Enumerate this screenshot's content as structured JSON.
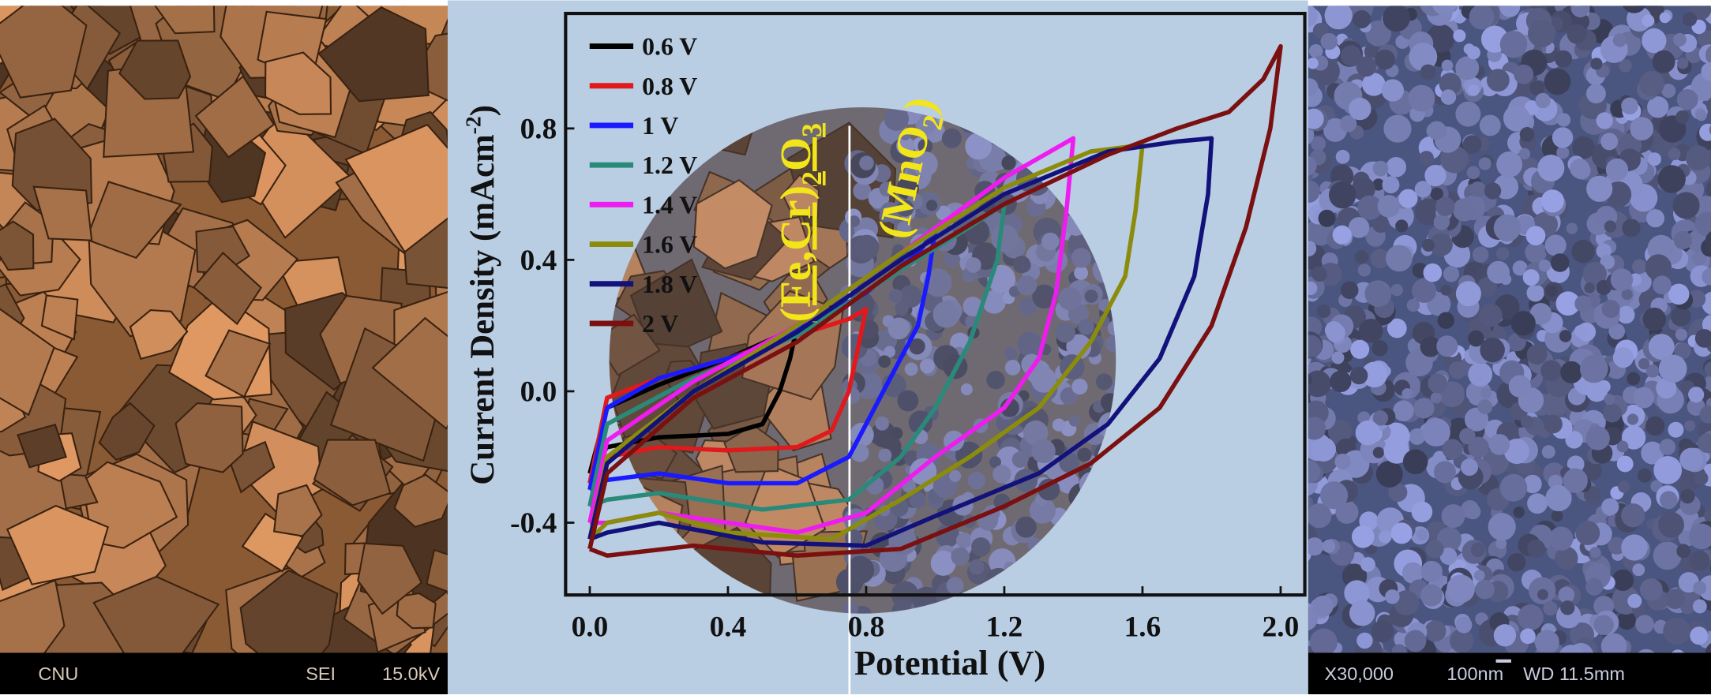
{
  "chart_data": {
    "type": "line",
    "x_label": "Potential (V)",
    "y_label": [
      "Current Density (mAcm",
      "-2",
      ")"
    ],
    "annotations": [
      [
        "(Fe,Cr)",
        "2",
        "O",
        "3"
      ],
      [
        "(MnO",
        "2",
        ")"
      ]
    ],
    "legend": "upper left",
    "xlim": [
      -0.07,
      2.07
    ],
    "ylim": [
      -0.62,
      1.15
    ],
    "xticks": [
      {
        "value": 0,
        "label": "0.0"
      },
      0.4,
      0.8,
      1.2,
      1.6,
      {
        "value": 2,
        "label": "2.0"
      }
    ],
    "yticks": [
      -0.4,
      {
        "value": 0,
        "label": "0.0"
      },
      0.4,
      0.8
    ],
    "series": [
      {
        "name": "0.6 V",
        "color": "#000000",
        "x": [
          0,
          0.05,
          0.2,
          0.4,
          0.55,
          0.6,
          0.58,
          0.55,
          0.5,
          0.4,
          0.2,
          0.05,
          0
        ],
        "values": [
          -0.25,
          -0.05,
          0.02,
          0.1,
          0.17,
          0.2,
          0.1,
          0.0,
          -0.1,
          -0.13,
          -0.14,
          -0.17,
          -0.25
        ]
      },
      {
        "name": "0.8 V",
        "color": "#e0191d",
        "x": [
          0,
          0.05,
          0.2,
          0.4,
          0.6,
          0.75,
          0.8,
          0.78,
          0.75,
          0.7,
          0.6,
          0.4,
          0.2,
          0.05,
          0
        ],
        "values": [
          -0.28,
          -0.02,
          0.04,
          0.1,
          0.17,
          0.22,
          0.25,
          0.15,
          0.0,
          -0.12,
          -0.17,
          -0.18,
          -0.17,
          -0.2,
          -0.28
        ]
      },
      {
        "name": "1 V",
        "color": "#1a1aff",
        "x": [
          0,
          0.05,
          0.2,
          0.5,
          0.8,
          0.95,
          1.0,
          0.98,
          0.95,
          0.85,
          0.75,
          0.6,
          0.4,
          0.2,
          0.05,
          0
        ],
        "values": [
          -0.3,
          -0.05,
          0.04,
          0.13,
          0.3,
          0.42,
          0.49,
          0.35,
          0.2,
          0.0,
          -0.2,
          -0.28,
          -0.28,
          -0.25,
          -0.27,
          -0.3
        ]
      },
      {
        "name": "1.2 V",
        "color": "#2a8a7a",
        "x": [
          0,
          0.05,
          0.3,
          0.6,
          0.9,
          1.1,
          1.2,
          1.18,
          1.1,
          1.0,
          0.9,
          0.75,
          0.5,
          0.2,
          0.05,
          0
        ],
        "values": [
          -0.35,
          -0.1,
          0.04,
          0.17,
          0.37,
          0.5,
          0.57,
          0.4,
          0.15,
          -0.05,
          -0.2,
          -0.33,
          -0.36,
          -0.31,
          -0.33,
          -0.35
        ]
      },
      {
        "name": "1.4 V",
        "color": "#ee1cee",
        "x": [
          0,
          0.05,
          0.3,
          0.6,
          0.9,
          1.2,
          1.4,
          1.38,
          1.35,
          1.3,
          1.2,
          1.0,
          0.8,
          0.6,
          0.4,
          0.2,
          0.05,
          0
        ],
        "values": [
          -0.4,
          -0.15,
          0.03,
          0.2,
          0.42,
          0.65,
          0.77,
          0.55,
          0.3,
          0.1,
          -0.05,
          -0.2,
          -0.37,
          -0.43,
          -0.4,
          -0.37,
          -0.4,
          -0.4
        ]
      },
      {
        "name": "1.6 V",
        "color": "#8c8c0c",
        "x": [
          0,
          0.05,
          0.3,
          0.6,
          0.9,
          1.2,
          1.45,
          1.6,
          1.58,
          1.55,
          1.45,
          1.3,
          1.1,
          0.9,
          0.7,
          0.4,
          0.2,
          0.05,
          0
        ],
        "values": [
          -0.45,
          -0.2,
          0.0,
          0.2,
          0.42,
          0.62,
          0.73,
          0.75,
          0.55,
          0.35,
          0.15,
          -0.05,
          -0.2,
          -0.33,
          -0.45,
          -0.43,
          -0.37,
          -0.4,
          -0.45
        ]
      },
      {
        "name": "1.8 V",
        "color": "#12127a",
        "x": [
          0,
          0.05,
          0.3,
          0.6,
          0.9,
          1.2,
          1.5,
          1.7,
          1.8,
          1.79,
          1.75,
          1.65,
          1.5,
          1.3,
          1.0,
          0.8,
          0.5,
          0.2,
          0.05,
          0
        ],
        "values": [
          -0.45,
          -0.22,
          0.0,
          0.18,
          0.4,
          0.6,
          0.73,
          0.76,
          0.77,
          0.6,
          0.35,
          0.1,
          -0.1,
          -0.25,
          -0.38,
          -0.47,
          -0.46,
          -0.4,
          -0.43,
          -0.45
        ]
      },
      {
        "name": "2 V",
        "color": "#7a1010",
        "x": [
          0,
          0.05,
          0.3,
          0.6,
          0.9,
          1.2,
          1.5,
          1.7,
          1.85,
          1.95,
          2.0,
          1.97,
          1.9,
          1.8,
          1.65,
          1.45,
          1.2,
          0.9,
          0.6,
          0.3,
          0.05,
          0
        ],
        "values": [
          -0.48,
          -0.25,
          -0.02,
          0.15,
          0.38,
          0.57,
          0.72,
          0.8,
          0.85,
          0.95,
          1.05,
          0.8,
          0.5,
          0.2,
          -0.05,
          -0.22,
          -0.35,
          -0.48,
          -0.5,
          -0.47,
          -0.5,
          -0.48
        ]
      }
    ]
  },
  "sem_left": {
    "footer": [
      "CNU",
      "SEI",
      "15.0kV"
    ]
  },
  "sem_right": {
    "footer": [
      "X30,000",
      "100nm",
      "WD 11.5mm"
    ]
  }
}
